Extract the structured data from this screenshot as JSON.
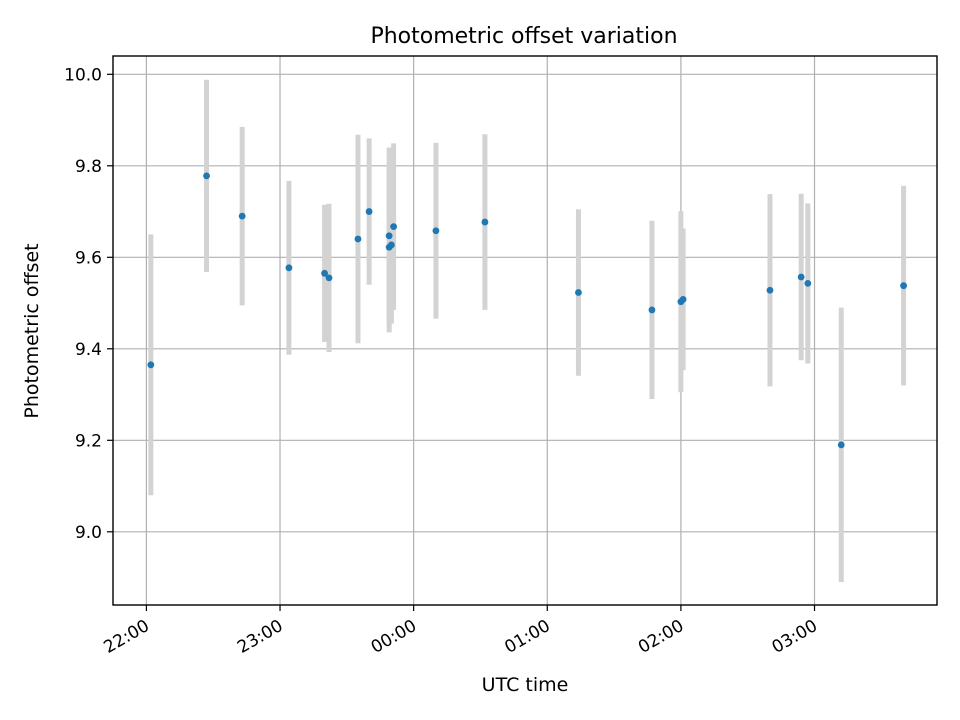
{
  "chart_data": {
    "type": "scatter",
    "title": "Photometric offset variation",
    "xlabel": "UTC time",
    "ylabel": "Photometric offset",
    "x_axis": {
      "kind": "time",
      "range": [
        "21:45",
        "03:55"
      ],
      "ticks": [
        "22:00",
        "23:00",
        "00:00",
        "01:00",
        "02:00",
        "03:00"
      ],
      "tick_label_rotation_deg": 30
    },
    "y_axis": {
      "range": [
        8.84,
        10.04
      ],
      "ticks": [
        "9.0",
        "9.2",
        "9.4",
        "9.6",
        "9.8",
        "10.0"
      ]
    },
    "grid": true,
    "colors": {
      "points": "#1f77b4",
      "error_bars": "#d3d3d3"
    },
    "points": [
      {
        "t": "22:02",
        "y": 9.365,
        "err": 0.285
      },
      {
        "t": "22:27",
        "y": 9.778,
        "err": 0.21
      },
      {
        "t": "22:43",
        "y": 9.69,
        "err": 0.195
      },
      {
        "t": "23:04",
        "y": 9.577,
        "err": 0.19
      },
      {
        "t": "23:20",
        "y": 9.565,
        "err": 0.15
      },
      {
        "t": "23:22",
        "y": 9.555,
        "err": 0.162
      },
      {
        "t": "23:35",
        "y": 9.64,
        "err": 0.228
      },
      {
        "t": "23:40",
        "y": 9.7,
        "err": 0.16
      },
      {
        "t": "23:49",
        "y": 9.622,
        "err": 0.186
      },
      {
        "t": "23:49",
        "y": 9.647,
        "err": 0.193
      },
      {
        "t": "23:50",
        "y": 9.627,
        "err": 0.172
      },
      {
        "t": "23:51",
        "y": 9.667,
        "err": 0.182
      },
      {
        "t": "00:10",
        "y": 9.658,
        "err": 0.192
      },
      {
        "t": "00:32",
        "y": 9.677,
        "err": 0.192
      },
      {
        "t": "01:14",
        "y": 9.523,
        "err": 0.182
      },
      {
        "t": "01:47",
        "y": 9.485,
        "err": 0.195
      },
      {
        "t": "02:00",
        "y": 9.503,
        "err": 0.198
      },
      {
        "t": "02:01",
        "y": 9.508,
        "err": 0.155
      },
      {
        "t": "02:40",
        "y": 9.528,
        "err": 0.21
      },
      {
        "t": "02:54",
        "y": 9.557,
        "err": 0.182
      },
      {
        "t": "02:57",
        "y": 9.543,
        "err": 0.175
      },
      {
        "t": "03:12",
        "y": 9.19,
        "err": 0.3
      },
      {
        "t": "03:40",
        "y": 9.538,
        "err": 0.218
      }
    ]
  }
}
